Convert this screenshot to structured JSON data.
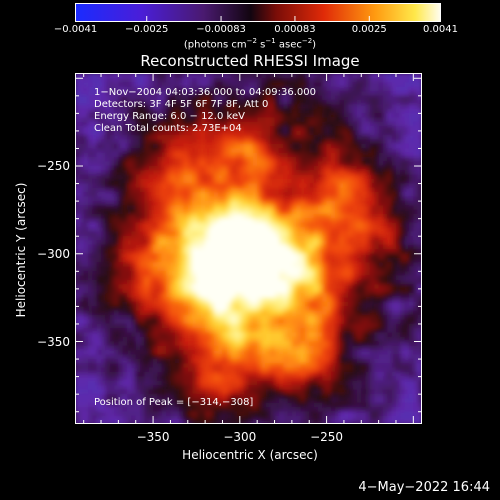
{
  "chart_data": {
    "type": "heatmap",
    "title": "Reconstructed RHESSI Image",
    "xlabel": "Heliocentric X (arcsec)",
    "ylabel": "Heliocentric Y (arcsec)",
    "x_ticks": [
      -350,
      -300,
      -250
    ],
    "y_ticks": [
      -250,
      -300,
      -350
    ],
    "x_tick_labels": [
      "−350",
      "−300",
      "−250"
    ],
    "y_tick_labels": [
      "−250",
      "−300",
      "−350"
    ],
    "xlim": [
      -395,
      -195
    ],
    "ylim": [
      -397,
      -197
    ],
    "colorbar": {
      "ticks": [
        -0.0041,
        -0.0025,
        -0.00083,
        0.00083,
        0.0025,
        0.0041
      ],
      "tick_labels": [
        "−0.0041",
        "−0.0025",
        "−0.00083",
        "0.00083",
        "0.0025",
        "0.0041"
      ],
      "range": [
        -0.0041,
        0.0041
      ],
      "units_text": "(photons cm",
      "units_exp1": "−2",
      "units_mid": " s",
      "units_exp2": "−1",
      "units_end": " asec",
      "units_exp3": "−2",
      "units_close": ")"
    },
    "peak_position": [
      -314,
      -308
    ],
    "colormap": "rhessi-blue-purple-red-yellow-white",
    "annotations": {
      "time_range": "1−Nov−2004 04:03:36.000 to 04:09:36.000",
      "detectors": "Detectors: 3F 4F 5F 6F 7F 8F, Att 0",
      "energy": "Energy Range: 6.0 − 12.0 keV",
      "clean": "Clean    Total counts: 2.73E+04",
      "peak": "Position of Peak = [−314,−308]"
    }
  },
  "footer": {
    "timestamp": "4−May−2022 16:44"
  },
  "colors": {
    "background": "#000000",
    "foreground": "#ffffff"
  }
}
